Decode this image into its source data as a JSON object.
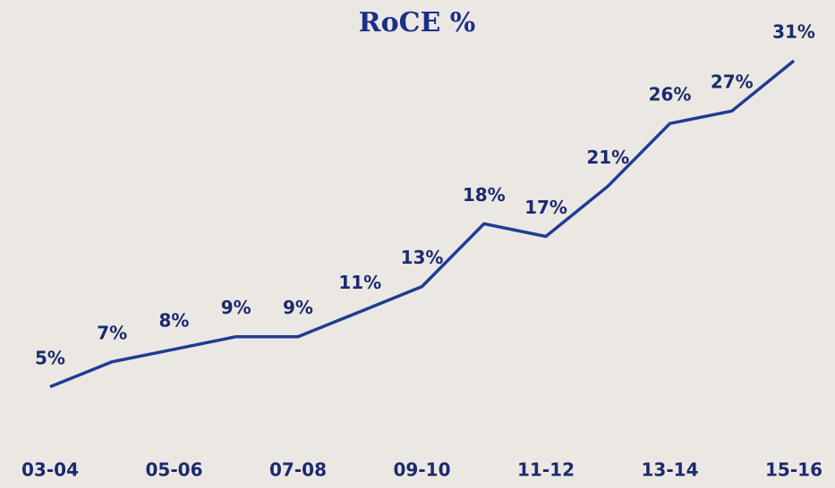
{
  "chart_data": {
    "type": "line",
    "title": "RoCE %",
    "categories": [
      "03-04",
      null,
      "05-06",
      null,
      "07-08",
      null,
      "09-10",
      null,
      "11-12",
      null,
      "13-14",
      null,
      "15-16"
    ],
    "series": [
      {
        "name": "RoCE",
        "color": "#1f3c94",
        "values": [
          5,
          7,
          8,
          9,
          9,
          11,
          13,
          18,
          17,
          21,
          26,
          27,
          31
        ],
        "value_labels": [
          "5%",
          "7%",
          "8%",
          "9%",
          "9%",
          "11%",
          "13%",
          "18%",
          "17%",
          "21%",
          "26%",
          "27%",
          "31%"
        ]
      }
    ],
    "ylim": [
      0,
      32
    ]
  }
}
